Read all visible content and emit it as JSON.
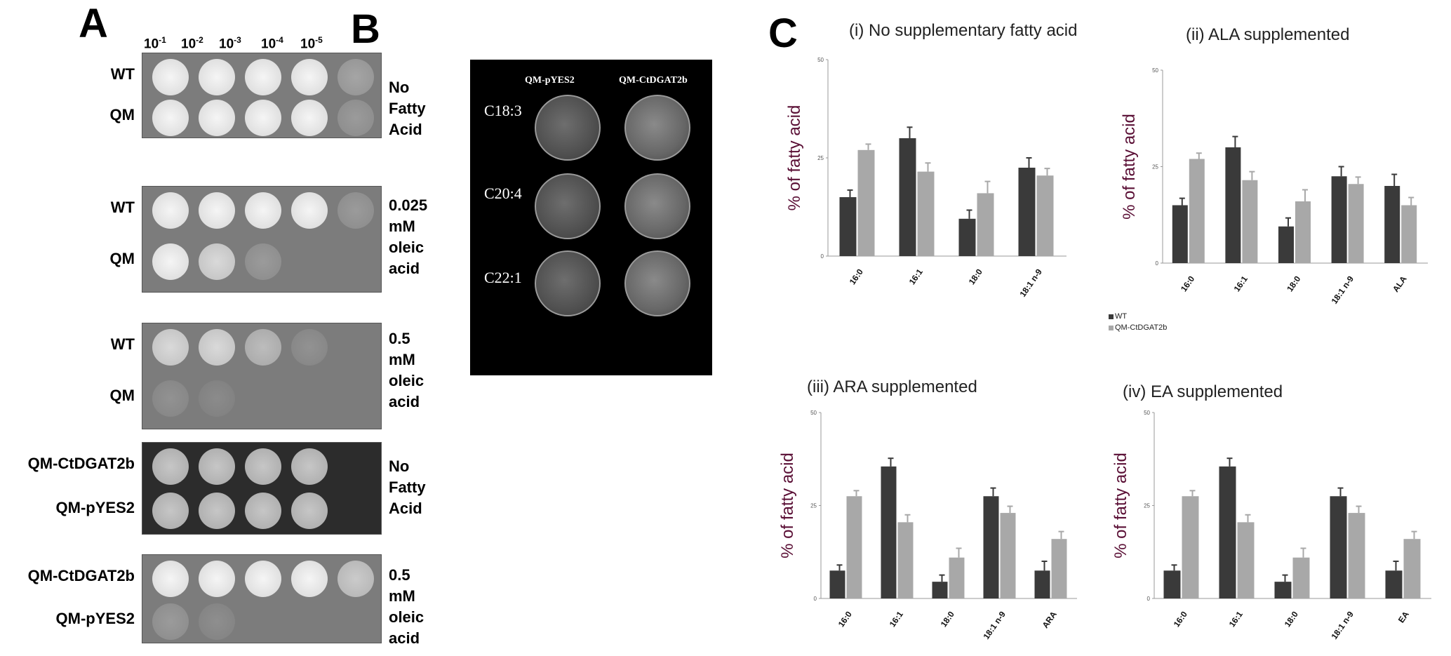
{
  "panelA": {
    "letter": "A",
    "dilutions": [
      {
        "base": "10",
        "exp": "-1"
      },
      {
        "base": "10",
        "exp": "-2"
      },
      {
        "base": "10",
        "exp": "-3"
      },
      {
        "base": "10",
        "exp": "-4"
      },
      {
        "base": "10",
        "exp": "-5"
      }
    ],
    "blocks": [
      {
        "strains": [
          "WT",
          "QM"
        ],
        "condition": "No\nFatty\nAcid"
      },
      {
        "strains": [
          "WT",
          "QM"
        ],
        "condition": "0.025\nmM\noleic\nacid"
      },
      {
        "strains": [
          "WT",
          "QM"
        ],
        "condition": "0.5\nmM\noleic\nacid"
      },
      {
        "strains": [
          "QM-CtDGAT2b",
          "QM-pYES2"
        ],
        "condition": "No\nFatty\nAcid"
      },
      {
        "strains": [
          "QM-CtDGAT2b",
          "QM-pYES2"
        ],
        "condition": "0.5\nmM\noleic\nacid"
      }
    ]
  },
  "panelB": {
    "letter": "B",
    "columns": [
      "QM-pYES2",
      "QM-CtDGAT2b"
    ],
    "rows": [
      "C18:3",
      "C20:4",
      "C22:1"
    ]
  },
  "panelC": {
    "letter": "C",
    "legend": [
      {
        "label": "WT",
        "color": "#3a3a3a"
      },
      {
        "label": "QM-CtDGAT2b",
        "color": "#a8a8a8"
      }
    ]
  },
  "chart_data": [
    {
      "type": "bar",
      "title": "(i) No supplementary fatty acid",
      "ylabel": "% of  fatty acid",
      "ylim": [
        0,
        50
      ],
      "yticks": [
        "0",
        "25",
        "50"
      ],
      "categories": [
        "16:0",
        "16:1",
        "18:0",
        "18:1 n-9"
      ],
      "series": [
        {
          "name": "WT",
          "values": [
            15,
            30,
            9.5,
            22.5
          ],
          "errors": [
            1.8,
            2.8,
            2.2,
            2.5
          ]
        },
        {
          "name": "QM-CtDGAT2b",
          "values": [
            27,
            21.5,
            16,
            20.5
          ],
          "errors": [
            1.5,
            2.2,
            3.0,
            1.8
          ]
        }
      ]
    },
    {
      "type": "bar",
      "title": "(ii) ALA supplemented",
      "ylabel": "% of  fatty acid",
      "ylim": [
        0,
        50
      ],
      "yticks": [
        "0",
        "25",
        "50"
      ],
      "categories": [
        "16:0",
        "16:1",
        "18:0",
        "18:1 n-9",
        "ALA"
      ],
      "series": [
        {
          "name": "WT",
          "values": [
            15,
            30,
            9.5,
            22.5,
            20
          ],
          "errors": [
            1.8,
            2.8,
            2.2,
            2.5,
            3.0
          ]
        },
        {
          "name": "QM-CtDGAT2b",
          "values": [
            27,
            21.5,
            16,
            20.5,
            15
          ],
          "errors": [
            1.5,
            2.2,
            3.0,
            1.8,
            2.0
          ]
        }
      ]
    },
    {
      "type": "bar",
      "title": "(iii) ARA supplemented",
      "ylabel": "% of  fatty acid",
      "ylim": [
        0,
        50
      ],
      "yticks": [
        "0",
        "25",
        "50"
      ],
      "categories": [
        "16:0",
        "16:1",
        "18:0",
        "18:1 n-9",
        "ARA"
      ],
      "series": [
        {
          "name": "WT",
          "values": [
            7.5,
            35.5,
            4.5,
            27.5,
            7.5
          ],
          "errors": [
            1.5,
            2.2,
            1.8,
            2.2,
            2.5
          ]
        },
        {
          "name": "QM-CtDGAT2b",
          "values": [
            27.5,
            20.5,
            11,
            23,
            16
          ],
          "errors": [
            1.5,
            2.0,
            2.5,
            1.8,
            2.0
          ]
        }
      ]
    },
    {
      "type": "bar",
      "title": "(iv) EA supplemented",
      "ylabel": "% of  fatty acid",
      "ylim": [
        0,
        50
      ],
      "yticks": [
        "0",
        "25",
        "50"
      ],
      "categories": [
        "16:0",
        "16:1",
        "18:0",
        "18:1 n-9",
        "EA"
      ],
      "series": [
        {
          "name": "WT",
          "values": [
            7.5,
            35.5,
            4.5,
            27.5,
            7.5
          ],
          "errors": [
            1.5,
            2.2,
            1.8,
            2.2,
            2.5
          ]
        },
        {
          "name": "QM-CtDGAT2b",
          "values": [
            27.5,
            20.5,
            11,
            23,
            16
          ],
          "errors": [
            1.5,
            2.0,
            2.5,
            1.8,
            2.0
          ]
        }
      ]
    }
  ]
}
